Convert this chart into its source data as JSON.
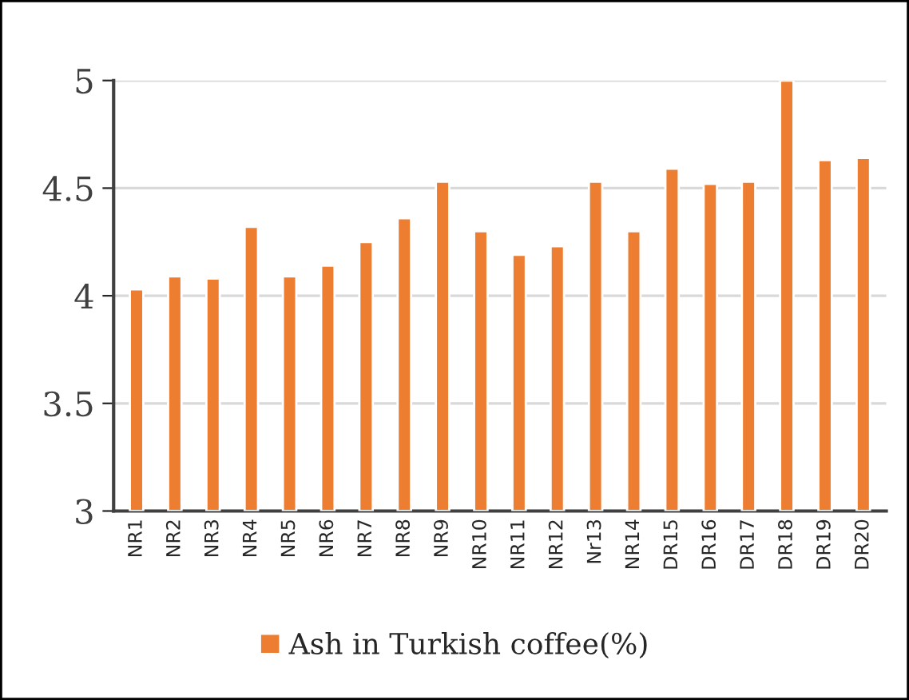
{
  "chart_data": {
    "type": "bar",
    "categories": [
      "NR1",
      "NR2",
      "NR3",
      "NR4",
      "NR5",
      "NR6",
      "NR7",
      "NR8",
      "NR9",
      "NR10",
      "NR11",
      "NR12",
      "Nr13",
      "NR14",
      "DR15",
      "DR16",
      "DR17",
      "DR18",
      "DR19",
      "DR20"
    ],
    "series": [
      {
        "name": "Ash in Turkish coffee(%)",
        "color": "#ed7d31",
        "values": [
          4.03,
          4.09,
          4.08,
          4.32,
          4.09,
          4.14,
          4.25,
          4.36,
          4.53,
          4.3,
          4.19,
          4.23,
          4.53,
          4.3,
          4.59,
          4.52,
          4.53,
          5.0,
          4.63,
          4.64
        ]
      }
    ],
    "ylim": [
      3,
      5
    ],
    "yticks": [
      3,
      {
        "value": 3.5,
        "label": "3.5"
      },
      4,
      {
        "value": 4.5,
        "label": "4.5"
      },
      5
    ],
    "grid": "y",
    "legend": "bottom"
  }
}
